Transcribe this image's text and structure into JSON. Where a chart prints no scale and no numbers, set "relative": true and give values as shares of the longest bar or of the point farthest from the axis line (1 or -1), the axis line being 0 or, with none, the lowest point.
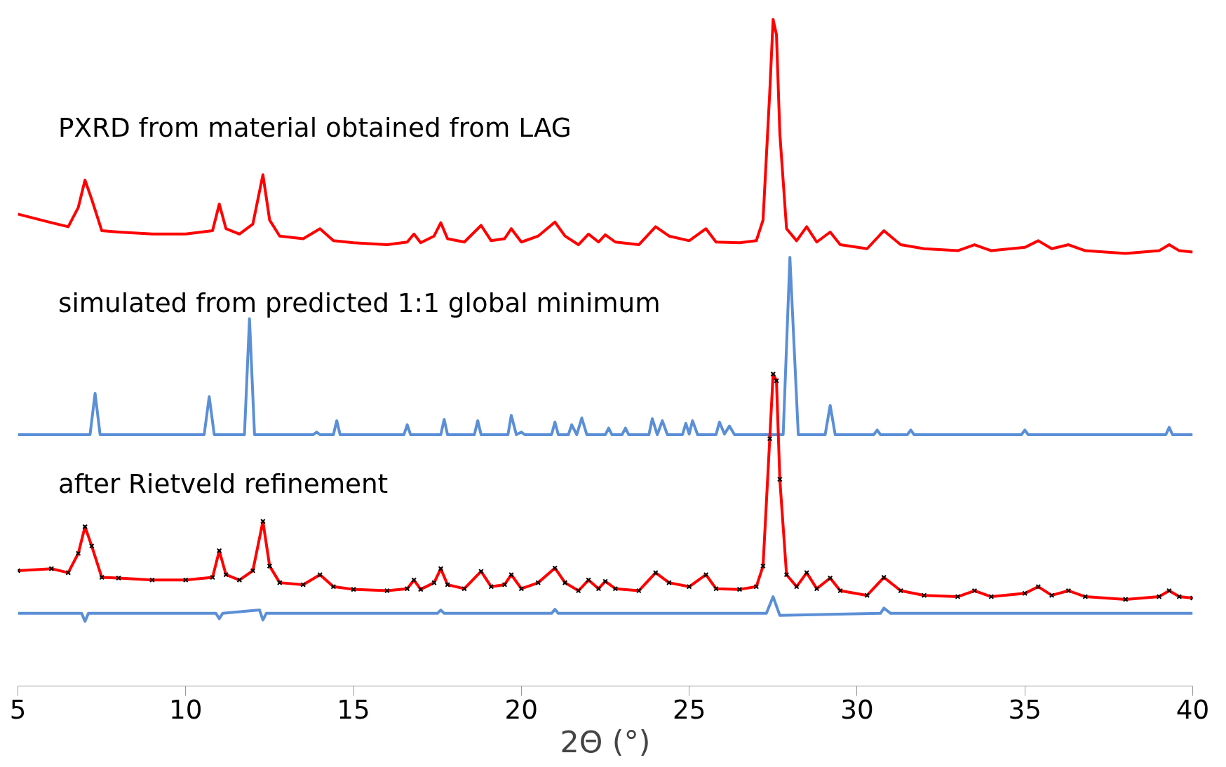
{
  "chart_data": {
    "type": "line",
    "relative": true,
    "xlabel": "2Θ (°)",
    "grid": false,
    "tick_labels": "x",
    "xlim": [
      5,
      40
    ],
    "xticks": [
      5,
      10,
      15,
      20,
      25,
      30,
      35,
      40
    ],
    "annotations": [
      "PXRD from material obtained from LAG",
      "simulated from predicted 1:1 global minimum",
      "after Rietveld refinement"
    ],
    "series": [
      {
        "color": "#ff0000",
        "line_style": "solid",
        "x": [
          5.0,
          6.0,
          6.5,
          6.8,
          7.0,
          7.2,
          7.5,
          8,
          9,
          10,
          10.8,
          11.0,
          11.2,
          11.6,
          12.0,
          12.3,
          12.5,
          12.8,
          13.5,
          14.0,
          14.4,
          15,
          16,
          16.6,
          16.8,
          17.0,
          17.4,
          17.6,
          17.8,
          18.3,
          18.8,
          19.1,
          19.5,
          19.7,
          20.0,
          20.5,
          21.0,
          21.3,
          21.7,
          22.0,
          22.3,
          22.5,
          22.8,
          23.5,
          24.0,
          24.4,
          25.0,
          25.5,
          25.8,
          26.5,
          27.0,
          27.2,
          27.4,
          27.5,
          27.6,
          27.7,
          27.9,
          28.2,
          28.5,
          28.8,
          29.2,
          29.5,
          30.3,
          30.8,
          31.3,
          32,
          33.0,
          33.5,
          34,
          35.0,
          35.4,
          35.8,
          36.3,
          36.8,
          38,
          39.0,
          39.3,
          39.6,
          40
        ],
        "values": [
          0.708,
          0.695,
          0.689,
          0.718,
          0.759,
          0.73,
          0.683,
          0.681,
          0.678,
          0.678,
          0.683,
          0.723,
          0.686,
          0.678,
          0.693,
          0.767,
          0.699,
          0.675,
          0.671,
          0.686,
          0.668,
          0.665,
          0.662,
          0.666,
          0.678,
          0.665,
          0.675,
          0.695,
          0.671,
          0.666,
          0.691,
          0.668,
          0.671,
          0.686,
          0.666,
          0.675,
          0.696,
          0.675,
          0.662,
          0.678,
          0.666,
          0.677,
          0.666,
          0.662,
          0.689,
          0.675,
          0.668,
          0.686,
          0.666,
          0.665,
          0.668,
          0.699,
          0.891,
          1.0,
          0.977,
          0.829,
          0.686,
          0.668,
          0.689,
          0.666,
          0.681,
          0.662,
          0.656,
          0.683,
          0.662,
          0.656,
          0.653,
          0.662,
          0.653,
          0.658,
          0.668,
          0.656,
          0.662,
          0.653,
          0.649,
          0.653,
          0.662,
          0.653,
          0.651
        ]
      },
      {
        "color": "#5b8fd6",
        "line_style": "solid",
        "x": [
          5.0,
          7.15,
          7.3,
          7.45,
          10.55,
          10.7,
          10.85,
          11.75,
          11.9,
          12.05,
          13.8,
          13.9,
          14.0,
          14.4,
          14.5,
          14.6,
          16.5,
          16.6,
          16.7,
          17.6,
          17.7,
          17.8,
          18.6,
          18.7,
          18.8,
          19.6,
          19.7,
          19.85,
          20.0,
          20.1,
          20.9,
          21.0,
          21.1,
          21.4,
          21.5,
          21.65,
          21.8,
          21.95,
          22.5,
          22.6,
          22.7,
          23.0,
          23.1,
          23.2,
          23.8,
          23.9,
          24.05,
          24.2,
          24.35,
          24.8,
          24.9,
          25.0,
          25.1,
          25.25,
          25.8,
          25.9,
          26.05,
          26.2,
          26.35,
          27.8,
          28.0,
          28.25,
          29.05,
          29.2,
          29.35,
          30.5,
          30.6,
          30.7,
          31.5,
          31.6,
          31.7,
          34.9,
          35.0,
          35.1,
          39.2,
          39.3,
          39.4,
          40
        ],
        "values": [
          0.377,
          0.377,
          0.439,
          0.377,
          0.377,
          0.434,
          0.377,
          0.377,
          0.551,
          0.377,
          0.377,
          0.381,
          0.377,
          0.377,
          0.398,
          0.377,
          0.377,
          0.392,
          0.377,
          0.377,
          0.4,
          0.377,
          0.377,
          0.398,
          0.377,
          0.377,
          0.406,
          0.377,
          0.381,
          0.377,
          0.377,
          0.396,
          0.377,
          0.377,
          0.392,
          0.377,
          0.402,
          0.377,
          0.377,
          0.387,
          0.377,
          0.377,
          0.387,
          0.377,
          0.377,
          0.401,
          0.377,
          0.398,
          0.377,
          0.377,
          0.394,
          0.378,
          0.398,
          0.377,
          0.377,
          0.396,
          0.378,
          0.39,
          0.377,
          0.377,
          0.643,
          0.377,
          0.377,
          0.421,
          0.377,
          0.377,
          0.384,
          0.377,
          0.377,
          0.384,
          0.377,
          0.377,
          0.384,
          0.377,
          0.377,
          0.388,
          0.377,
          0.377
        ]
      },
      {
        "color": "#ff0000",
        "line_style": "solid",
        "x": [
          5.0,
          6.0,
          6.5,
          6.8,
          7.0,
          7.2,
          7.5,
          8,
          9,
          10,
          10.8,
          11.0,
          11.2,
          11.6,
          12.0,
          12.3,
          12.5,
          12.8,
          13.5,
          14.0,
          14.4,
          15,
          16,
          16.6,
          16.8,
          17.0,
          17.4,
          17.6,
          17.8,
          18.3,
          18.8,
          19.1,
          19.5,
          19.7,
          20.0,
          20.5,
          21.0,
          21.3,
          21.7,
          22.0,
          22.3,
          22.5,
          22.8,
          23.5,
          24.0,
          24.4,
          25.0,
          25.5,
          25.8,
          26.5,
          27.0,
          27.2,
          27.4,
          27.5,
          27.6,
          27.7,
          27.9,
          28.2,
          28.5,
          28.8,
          29.2,
          29.5,
          30.3,
          30.8,
          31.3,
          32,
          33.0,
          33.5,
          34,
          35.0,
          35.4,
          35.8,
          36.3,
          36.8,
          38,
          39.0,
          39.3,
          39.6,
          40
        ],
        "values": [
          0.173,
          0.176,
          0.17,
          0.199,
          0.239,
          0.21,
          0.163,
          0.162,
          0.159,
          0.159,
          0.163,
          0.203,
          0.167,
          0.159,
          0.173,
          0.247,
          0.18,
          0.155,
          0.152,
          0.167,
          0.149,
          0.145,
          0.143,
          0.146,
          0.159,
          0.145,
          0.155,
          0.176,
          0.152,
          0.146,
          0.172,
          0.149,
          0.152,
          0.167,
          0.146,
          0.155,
          0.177,
          0.155,
          0.143,
          0.159,
          0.146,
          0.157,
          0.146,
          0.143,
          0.17,
          0.155,
          0.149,
          0.167,
          0.146,
          0.145,
          0.149,
          0.18,
          0.371,
          0.468,
          0.458,
          0.31,
          0.167,
          0.149,
          0.17,
          0.146,
          0.162,
          0.143,
          0.136,
          0.163,
          0.143,
          0.136,
          0.134,
          0.143,
          0.134,
          0.139,
          0.149,
          0.136,
          0.143,
          0.134,
          0.13,
          0.134,
          0.143,
          0.134,
          0.132
        ]
      },
      {
        "type": "scatter",
        "color": "#000000",
        "marker": "cross",
        "x": [
          5.0,
          6.0,
          6.5,
          6.8,
          7.0,
          7.2,
          7.5,
          8,
          9,
          10,
          10.8,
          11.0,
          11.2,
          11.6,
          12.0,
          12.3,
          12.5,
          12.8,
          13.5,
          14.0,
          14.4,
          15,
          16,
          16.6,
          16.8,
          17.0,
          17.4,
          17.6,
          17.8,
          18.3,
          18.8,
          19.1,
          19.5,
          19.7,
          20.0,
          20.5,
          21.0,
          21.3,
          21.7,
          22.0,
          22.3,
          22.5,
          22.8,
          23.5,
          24.0,
          24.4,
          25.0,
          25.5,
          25.8,
          26.5,
          27.0,
          27.2,
          27.4,
          27.5,
          27.6,
          27.7,
          27.9,
          28.2,
          28.5,
          28.8,
          29.2,
          29.5,
          30.3,
          30.8,
          31.3,
          32,
          33.0,
          33.5,
          34,
          35.0,
          35.4,
          35.8,
          36.3,
          36.8,
          38,
          39.0,
          39.3,
          39.6,
          40
        ],
        "values": [
          0.173,
          0.176,
          0.17,
          0.199,
          0.239,
          0.21,
          0.163,
          0.162,
          0.159,
          0.159,
          0.163,
          0.203,
          0.167,
          0.159,
          0.173,
          0.247,
          0.18,
          0.155,
          0.152,
          0.167,
          0.149,
          0.145,
          0.143,
          0.146,
          0.159,
          0.145,
          0.155,
          0.176,
          0.152,
          0.146,
          0.172,
          0.149,
          0.152,
          0.167,
          0.146,
          0.155,
          0.177,
          0.155,
          0.143,
          0.159,
          0.146,
          0.157,
          0.146,
          0.143,
          0.17,
          0.155,
          0.149,
          0.167,
          0.146,
          0.145,
          0.149,
          0.18,
          0.371,
          0.468,
          0.458,
          0.31,
          0.167,
          0.149,
          0.17,
          0.146,
          0.162,
          0.143,
          0.136,
          0.163,
          0.143,
          0.136,
          0.134,
          0.143,
          0.134,
          0.139,
          0.149,
          0.136,
          0.143,
          0.134,
          0.13,
          0.134,
          0.143,
          0.134,
          0.132
        ]
      },
      {
        "color": "#5b8fd6",
        "line_style": "solid",
        "x": [
          5.0,
          6.9,
          7.0,
          7.1,
          10.9,
          11.0,
          11.1,
          12.2,
          12.3,
          12.4,
          17.5,
          17.6,
          17.7,
          20.9,
          21.0,
          21.1,
          27.3,
          27.5,
          27.7,
          30.7,
          30.8,
          31.0,
          40
        ],
        "values": [
          0.109,
          0.109,
          0.097,
          0.109,
          0.109,
          0.101,
          0.109,
          0.114,
          0.099,
          0.109,
          0.109,
          0.114,
          0.109,
          0.109,
          0.115,
          0.109,
          0.109,
          0.134,
          0.106,
          0.109,
          0.117,
          0.109,
          0.109
        ]
      }
    ]
  }
}
